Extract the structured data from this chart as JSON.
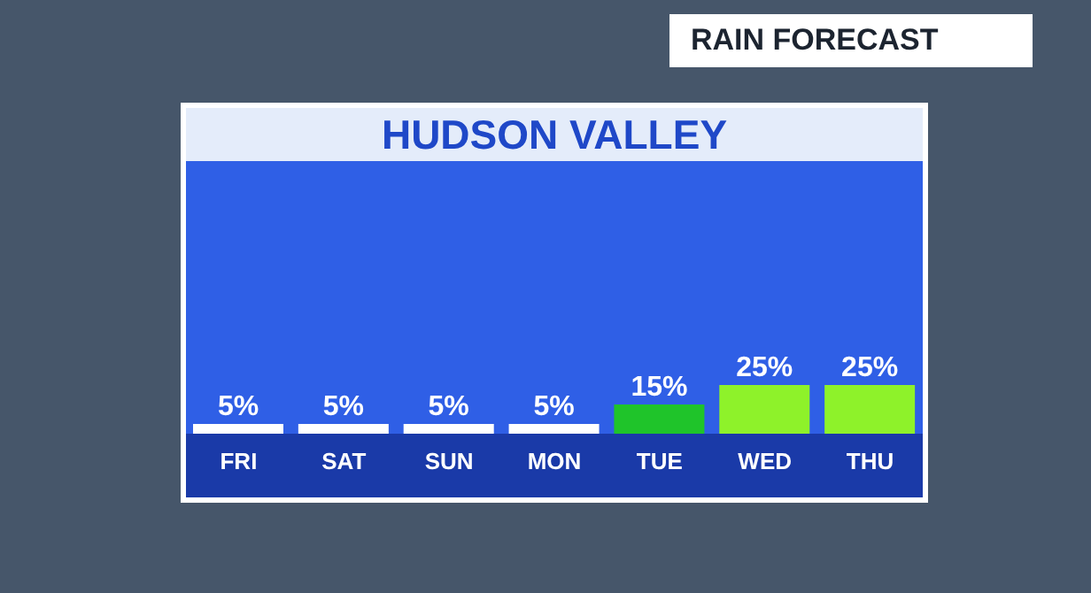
{
  "chart_data": {
    "type": "bar",
    "title": "HUDSON VALLEY",
    "subtitle": "RAIN FORECAST",
    "categories": [
      "FRI",
      "SAT",
      "SUN",
      "MON",
      "TUE",
      "WED",
      "THU"
    ],
    "values": [
      5,
      5,
      5,
      5,
      15,
      25,
      25
    ],
    "colors": [
      "#ffffff",
      "#ffffff",
      "#ffffff",
      "#ffffff",
      "#1fc42a",
      "#8ef22a",
      "#8ef22a"
    ],
    "value_labels": [
      "5%",
      "5%",
      "5%",
      "5%",
      "15%",
      "25%",
      "25%"
    ]
  }
}
